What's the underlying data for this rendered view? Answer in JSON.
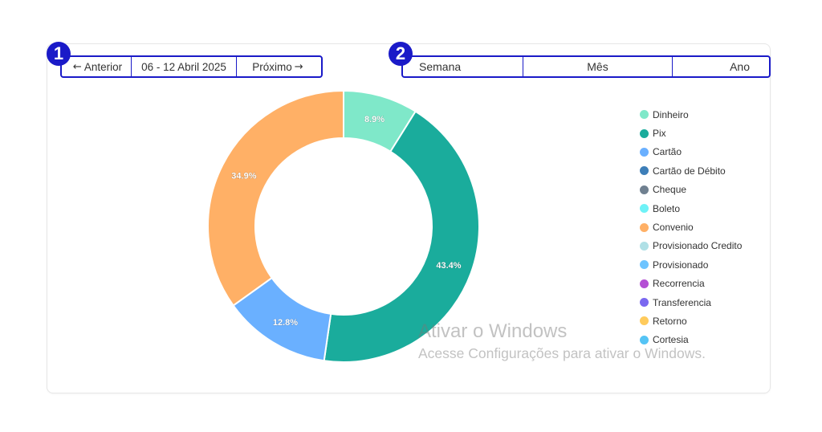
{
  "period_nav": {
    "prev_label": "Anterior",
    "range_label": "06 - 12 Abril 2025",
    "next_label": "Próximo"
  },
  "view_tabs": {
    "week": "Semana",
    "month": "Mês",
    "year": "Ano"
  },
  "markers": {
    "one": "1",
    "two": "2"
  },
  "chart_data": {
    "type": "pie",
    "variant": "donut",
    "slices": [
      {
        "name": "Dinheiro",
        "value": 8.9,
        "label": "8.9%",
        "color": "#7fe8c9"
      },
      {
        "name": "Pix",
        "value": 43.4,
        "label": "43.4%",
        "color": "#1aac9c"
      },
      {
        "name": "Cartão",
        "value": 12.8,
        "label": "12.8%",
        "color": "#6ab0ff"
      },
      {
        "name": "Convenio",
        "value": 34.9,
        "label": "34.9%",
        "color": "#ffb066"
      }
    ],
    "legend": [
      {
        "name": "Dinheiro",
        "color": "#7fe8c9"
      },
      {
        "name": "Pix",
        "color": "#1aac9c"
      },
      {
        "name": "Cartão",
        "color": "#6ab0ff"
      },
      {
        "name": "Cartão de Débito",
        "color": "#3d7eb8"
      },
      {
        "name": "Cheque",
        "color": "#708090"
      },
      {
        "name": "Boleto",
        "color": "#6ff2f7"
      },
      {
        "name": "Convenio",
        "color": "#ffb066"
      },
      {
        "name": "Provisionado Credito",
        "color": "#b0e0e6"
      },
      {
        "name": "Provisionado",
        "color": "#6ec4ff"
      },
      {
        "name": "Recorrencia",
        "color": "#b44fd4"
      },
      {
        "name": "Transferencia",
        "color": "#7a68f0"
      },
      {
        "name": "Retorno",
        "color": "#ffcb5c"
      },
      {
        "name": "Cortesia",
        "color": "#55c4f5"
      }
    ],
    "legend_position": "right"
  },
  "watermark": {
    "title": "Ativar o Windows",
    "subtitle": "Acesse Configurações para ativar o Windows."
  }
}
